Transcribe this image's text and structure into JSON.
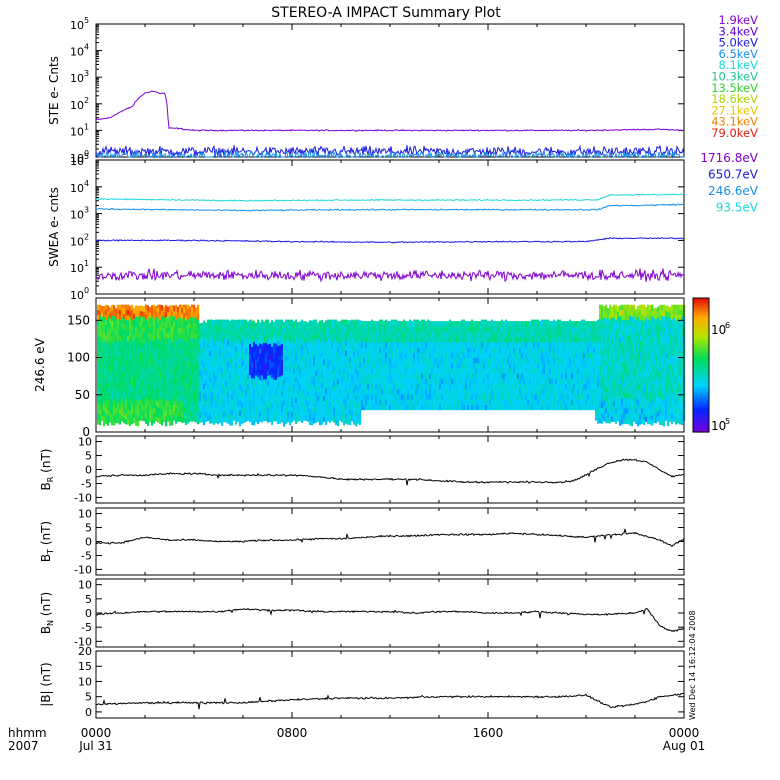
{
  "title": "STEREO-A IMPACT Summary Plot",
  "timestamp": "Wed Dec 14 16:12:04 2008",
  "time_axis": {
    "header_top": "hhmm",
    "header_bottom": "2007",
    "ticks": [
      {
        "label": "0000",
        "sub": "Jul 31",
        "hour": 0
      },
      {
        "label": "0800",
        "sub": "",
        "hour": 8
      },
      {
        "label": "1600",
        "sub": "",
        "hour": 16
      },
      {
        "label": "0000",
        "sub": "Aug 01",
        "hour": 24
      }
    ],
    "range_hours": [
      0,
      24
    ]
  },
  "chart_data": [
    {
      "type": "line",
      "panel": "ste",
      "ylabel": "STE e- Cnts",
      "yscale": "log",
      "ylim": [
        1,
        100000
      ],
      "ytick_exponents": [
        0,
        1,
        2,
        3,
        4,
        5
      ],
      "legend": [
        {
          "label": "1.9keV",
          "color": "#8000d0"
        },
        {
          "label": "3.4keV",
          "color": "#5a00d8"
        },
        {
          "label": "5.0keV",
          "color": "#1a1ae0"
        },
        {
          "label": "6.5keV",
          "color": "#1890e8"
        },
        {
          "label": "8.1keV",
          "color": "#20d8d8"
        },
        {
          "label": "10.3keV",
          "color": "#20c890"
        },
        {
          "label": "13.5keV",
          "color": "#30d030"
        },
        {
          "label": "18.6keV",
          "color": "#a8d800"
        },
        {
          "label": "27.1keV",
          "color": "#e8c800"
        },
        {
          "label": "43.1keV",
          "color": "#f08000"
        },
        {
          "label": "79.0keV",
          "color": "#e02010"
        }
      ],
      "series": [
        {
          "name": "1.9keV",
          "color": "#8000d0",
          "x": [
            0,
            0.6,
            1.2,
            1.5,
            2.0,
            2.3,
            2.6,
            2.8,
            2.95,
            3.3,
            3.6,
            4,
            8,
            12,
            16,
            20,
            23,
            24
          ],
          "y": [
            25,
            30,
            60,
            80,
            250,
            300,
            250,
            250,
            12,
            12,
            11,
            10,
            10,
            10,
            10,
            10,
            11,
            10
          ]
        },
        {
          "name": "5.0keV",
          "color": "#1a1ae0",
          "x": [
            0,
            24
          ],
          "y": [
            1.6,
            1.6
          ]
        },
        {
          "name": "6.5keV",
          "color": "#1890e8",
          "x": [
            0,
            24
          ],
          "y": [
            1.1,
            1.1
          ]
        }
      ]
    },
    {
      "type": "line",
      "panel": "swea",
      "ylabel": "SWEA e- cnts",
      "yscale": "log",
      "ylim": [
        1,
        100000
      ],
      "ytick_exponents": [
        0,
        1,
        2,
        3,
        4,
        5
      ],
      "legend": [
        {
          "label": "1716.8eV",
          "color": "#8000d0"
        },
        {
          "label": "650.7eV",
          "color": "#1a1ae0"
        },
        {
          "label": "246.6eV",
          "color": "#1890e8"
        },
        {
          "label": "93.5eV",
          "color": "#20d8d8"
        }
      ],
      "series": [
        {
          "name": "93.5eV",
          "color": "#20d8d8",
          "x": [
            0,
            3,
            6,
            10,
            14,
            18,
            20.5,
            21,
            22,
            24
          ],
          "y": [
            3500,
            3300,
            3000,
            3200,
            3200,
            3200,
            3300,
            5000,
            5000,
            5200
          ]
        },
        {
          "name": "246.6eV",
          "color": "#1890e8",
          "x": [
            0,
            3,
            6,
            10,
            14,
            18,
            20.5,
            21,
            22,
            24
          ],
          "y": [
            1500,
            1400,
            1300,
            1400,
            1400,
            1400,
            1400,
            2000,
            2000,
            2200
          ]
        },
        {
          "name": "650.7eV",
          "color": "#1a1ae0",
          "x": [
            0,
            4,
            8,
            12,
            16,
            20,
            21,
            24
          ],
          "y": [
            100,
            100,
            90,
            85,
            90,
            90,
            120,
            120
          ]
        },
        {
          "name": "1716.8eV",
          "color": "#8000d0",
          "x": [
            0,
            24
          ],
          "y": [
            5,
            5
          ]
        }
      ]
    },
    {
      "type": "heatmap",
      "panel": "pad",
      "ylabel": "246.6 eV",
      "ylim": [
        0,
        180
      ],
      "yticks": [
        0,
        50,
        100,
        150
      ],
      "colorbar": {
        "min_label": "10",
        "min_exp": "5",
        "max_label": "10",
        "max_exp": "6"
      },
      "segments": [
        {
          "x": [
            0,
            20.5
          ],
          "pitch_top": 165,
          "gap_from": 4.2,
          "gap_top": 145
        },
        {
          "x": [
            20.5,
            24
          ],
          "pitch_top": 165
        }
      ]
    },
    {
      "type": "line",
      "panel": "br",
      "ylabel": "B",
      "ylabel_sub": "R",
      "yunit": "(nT)",
      "ylim": [
        -12,
        12
      ],
      "yticks": [
        -10,
        -5,
        0,
        5,
        10
      ],
      "x": [
        0,
        1,
        2,
        3,
        4,
        5,
        6,
        7,
        8,
        9,
        10,
        11,
        12,
        13,
        14,
        15,
        16,
        17,
        18,
        19,
        19.5,
        20,
        20.5,
        21,
        21.5,
        22,
        22.5,
        23,
        23.5,
        24
      ],
      "y": [
        -2.5,
        -2,
        -2,
        -1.5,
        -1.5,
        -2,
        -2,
        -2,
        -2,
        -2.5,
        -3.5,
        -3.5,
        -3.5,
        -3.5,
        -4,
        -4.5,
        -4.5,
        -4.5,
        -4.5,
        -4.5,
        -4,
        -2,
        0.5,
        2.5,
        3.5,
        3.5,
        2.5,
        0,
        -2.5,
        -2
      ]
    },
    {
      "type": "line",
      "panel": "bt",
      "ylabel": "B",
      "ylabel_sub": "T",
      "yunit": "(nT)",
      "ylim": [
        -12,
        12
      ],
      "yticks": [
        -10,
        -5,
        0,
        5,
        10
      ],
      "x": [
        0,
        1,
        2,
        3,
        4,
        5,
        6,
        7,
        8,
        9,
        10,
        11,
        12,
        13,
        14,
        15,
        16,
        17,
        18,
        19,
        20,
        21,
        22,
        23,
        23.5,
        24
      ],
      "y": [
        -0.5,
        -0.5,
        1.5,
        0.5,
        0.5,
        0,
        0,
        0.5,
        0.5,
        1,
        1,
        1.5,
        2,
        2,
        2.5,
        2.5,
        2.5,
        3,
        2.5,
        2,
        1.5,
        2.5,
        3,
        0.5,
        -1.5,
        1
      ]
    },
    {
      "type": "line",
      "panel": "bn",
      "ylabel": "B",
      "ylabel_sub": "N",
      "yunit": "(nT)",
      "ylim": [
        -12,
        12
      ],
      "yticks": [
        -10,
        -5,
        0,
        5,
        10
      ],
      "x": [
        0,
        1,
        2,
        3,
        4,
        5,
        6,
        7,
        8,
        9,
        10,
        11,
        12,
        13,
        14,
        15,
        16,
        17,
        18,
        19,
        20,
        21,
        22,
        22.5,
        23,
        23.5,
        24
      ],
      "y": [
        -0.5,
        0,
        0.5,
        0.5,
        0.5,
        0.5,
        1.5,
        1,
        1,
        0.5,
        0.5,
        0.5,
        0.5,
        0,
        0.5,
        0.5,
        0,
        0,
        0.5,
        0,
        -0.5,
        -0.5,
        0,
        1.5,
        -4.5,
        -6.5,
        -5.5
      ]
    },
    {
      "type": "line",
      "panel": "bmag",
      "ylabel": "|B|",
      "ylabel_sub": "",
      "yunit": "(nT)",
      "ylim": [
        -2,
        20
      ],
      "yticks": [
        0,
        5,
        10,
        15,
        20
      ],
      "x": [
        0,
        2,
        4,
        6,
        8,
        10,
        12,
        14,
        16,
        18,
        19,
        20,
        21,
        22,
        22.5,
        23,
        23.5,
        24
      ],
      "y": [
        2.5,
        3,
        3,
        3,
        4,
        4.5,
        4.5,
        5,
        5,
        5,
        5,
        5.5,
        1.5,
        2.5,
        3.5,
        5,
        5.5,
        6
      ]
    }
  ]
}
